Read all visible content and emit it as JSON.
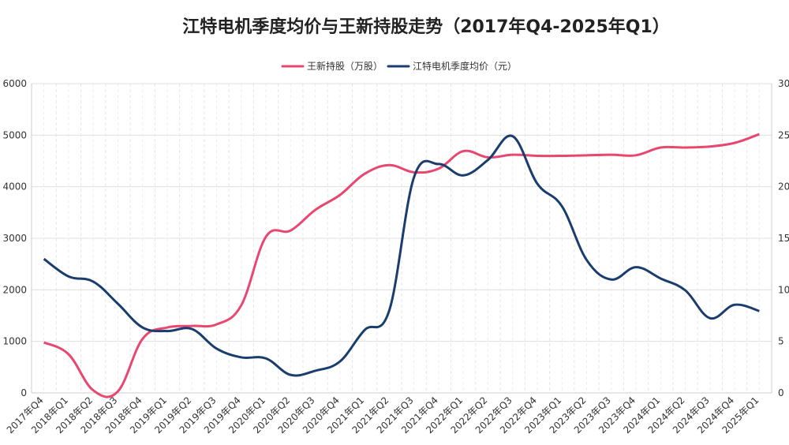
{
  "chart_data": {
    "type": "line",
    "title": "江特电机季度均价与王新持股走势（2017年Q4-2025年Q1）",
    "categories": [
      "2017年Q4",
      "2018年Q1",
      "2018年Q2",
      "2018年Q3",
      "2018年Q4",
      "2019年Q1",
      "2019年Q2",
      "2019年Q3",
      "2019年Q4",
      "2020年Q1",
      "2020年Q2",
      "2020年Q3",
      "2020年Q4",
      "2021年Q1",
      "2021年Q2",
      "2021年Q3",
      "2021年Q4",
      "2022年Q1",
      "2022年Q2",
      "2022年Q3",
      "2022年Q4",
      "2023年Q1",
      "2023年Q2",
      "2023年Q3",
      "2023年Q4",
      "2024年Q1",
      "2024年Q2",
      "2024年Q3",
      "2024年Q4",
      "2025年Q1"
    ],
    "series": [
      {
        "name": "王新持股（万股）",
        "axis": "left",
        "color": "#e8486f",
        "values": [
          980,
          750,
          50,
          30,
          1050,
          1270,
          1300,
          1330,
          1700,
          3030,
          3150,
          3550,
          3840,
          4250,
          4420,
          4280,
          4350,
          4690,
          4570,
          4620,
          4600,
          4600,
          4610,
          4620,
          4610,
          4760,
          4760,
          4780,
          4850,
          5020
        ]
      },
      {
        "name": "江特电机季度均价（元）",
        "axis": "right",
        "color": "#1a3d6e",
        "values": [
          13.0,
          11.3,
          10.8,
          8.65,
          6.35,
          6.0,
          6.2,
          4.3,
          3.45,
          3.35,
          1.75,
          2.15,
          3.05,
          6.1,
          8.0,
          20.9,
          22.2,
          21.1,
          22.6,
          24.9,
          20.3,
          18.1,
          12.9,
          11.0,
          12.2,
          11.1,
          9.95,
          7.25,
          8.55,
          7.95
        ]
      }
    ],
    "y_left": {
      "range": [
        0,
        6000
      ],
      "ticks": [
        "0",
        "1000",
        "2000",
        "3000",
        "4000",
        "5000",
        "6000"
      ]
    },
    "y_right": {
      "range": [
        0,
        30
      ],
      "ticks": [
        "0",
        "5",
        "10",
        "15",
        "20",
        "25",
        "30"
      ]
    },
    "grid": true,
    "legend_position": "top-center",
    "smooth": true
  }
}
